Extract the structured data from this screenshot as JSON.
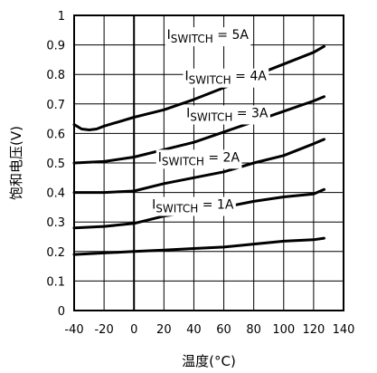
{
  "chart_data": {
    "type": "line",
    "title": "",
    "xlabel": "温度(°C)",
    "ylabel": "饱和电压(V)",
    "xlim": [
      -40,
      140
    ],
    "ylim": [
      0,
      1
    ],
    "x_ticks": [
      "-40",
      "-20",
      "0",
      "20",
      "40",
      "60",
      "80",
      "100",
      "120",
      "140"
    ],
    "y_ticks": [
      "0",
      "0.1",
      "0.2",
      "0.3",
      "0.4",
      "0.5",
      "0.6",
      "0.7",
      "0.8",
      "0.9",
      "1"
    ],
    "grid": true,
    "colors": {
      "line": "#000000",
      "grid": "#000000",
      "background": "#ffffff"
    },
    "series": [
      {
        "name": "ISWITCH = 5A",
        "label": {
          "prefix": "I",
          "sub": "SWITCH",
          "suffix": " = 5A"
        },
        "x": [
          -40,
          -35,
          -30,
          -25,
          -20,
          -10,
          0,
          20,
          40,
          60,
          80,
          100,
          120,
          127
        ],
        "y": [
          0.63,
          0.615,
          0.612,
          0.615,
          0.625,
          0.64,
          0.655,
          0.68,
          0.715,
          0.755,
          0.795,
          0.835,
          0.875,
          0.895
        ]
      },
      {
        "name": "ISWITCH = 4A",
        "label": {
          "prefix": "I",
          "sub": "SWITCH",
          "suffix": " = 4A"
        },
        "x": [
          -40,
          -20,
          0,
          20,
          40,
          60,
          80,
          100,
          120,
          127
        ],
        "y": [
          0.5,
          0.505,
          0.52,
          0.545,
          0.57,
          0.605,
          0.64,
          0.675,
          0.71,
          0.725
        ]
      },
      {
        "name": "ISWITCH = 3A",
        "label": {
          "prefix": "I",
          "sub": "SWITCH",
          "suffix": " = 3A"
        },
        "x": [
          -40,
          -20,
          0,
          20,
          40,
          60,
          80,
          100,
          120,
          127
        ],
        "y": [
          0.4,
          0.4,
          0.405,
          0.43,
          0.45,
          0.47,
          0.5,
          0.525,
          0.565,
          0.58
        ]
      },
      {
        "name": "ISWITCH = 2A",
        "label": {
          "prefix": "I",
          "sub": "SWITCH",
          "suffix": " = 2A"
        },
        "x": [
          -40,
          -20,
          0,
          20,
          40,
          60,
          80,
          100,
          120,
          127
        ],
        "y": [
          0.28,
          0.285,
          0.295,
          0.32,
          0.335,
          0.35,
          0.37,
          0.385,
          0.395,
          0.41
        ]
      },
      {
        "name": "ISWITCH = 1A",
        "label": {
          "prefix": "I",
          "sub": "SWITCH",
          "suffix": " = 1A"
        },
        "x": [
          -40,
          -20,
          0,
          20,
          40,
          60,
          80,
          100,
          120,
          127
        ],
        "y": [
          0.19,
          0.195,
          0.2,
          0.205,
          0.21,
          0.215,
          0.225,
          0.235,
          0.24,
          0.245
        ]
      }
    ]
  }
}
